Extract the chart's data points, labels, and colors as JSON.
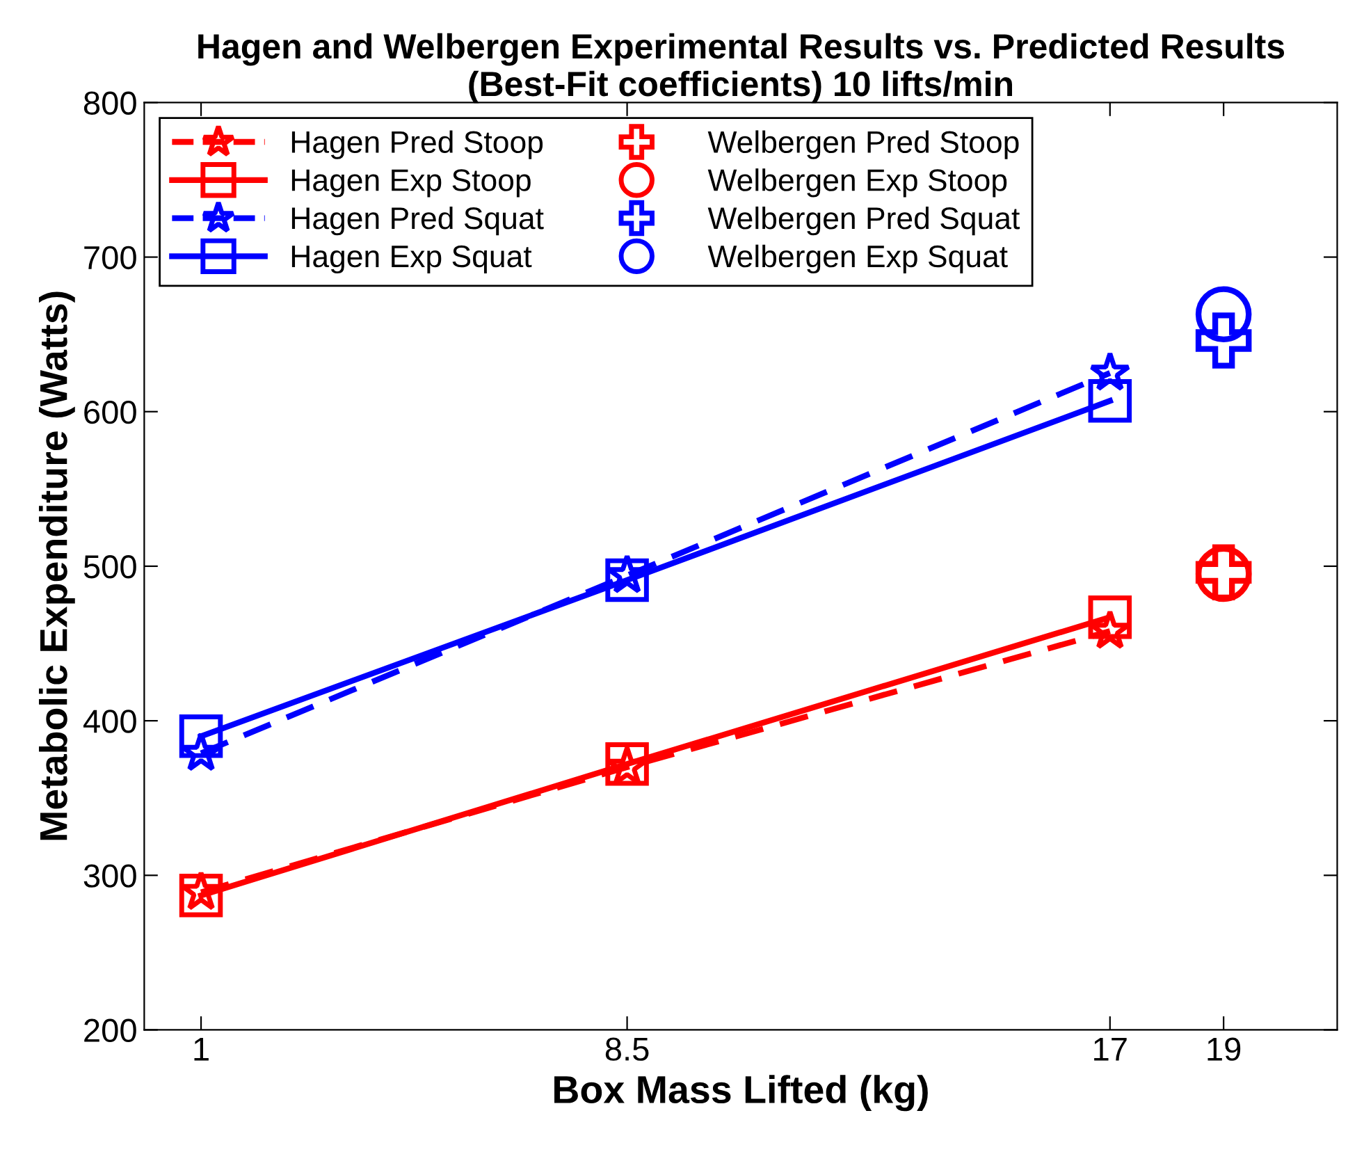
{
  "chart_data": {
    "type": "line",
    "title": "Hagen and Welbergen Experimental Results vs. Predicted Results (Best-Fit coefficients) 10 lifts/min",
    "xlabel": "Box Mass Lifted (kg)",
    "ylabel": "Metabolic Expenditure (Watts)",
    "xlim": [
      0,
      21
    ],
    "xticks": [
      1,
      8.5,
      17,
      19
    ],
    "ylim": [
      200,
      800
    ],
    "yticks": [
      200,
      300,
      400,
      500,
      600,
      700,
      800
    ],
    "grid": false,
    "legend": "top left",
    "series": [
      {
        "name": "Hagen Pred Stoop",
        "color": "#ff0000",
        "x": [
          1,
          8.5,
          17
        ],
        "values": [
          289,
          370,
          458
        ],
        "marker": "star",
        "line_style": "dashed"
      },
      {
        "name": "Hagen Exp Stoop",
        "color": "#ff0000",
        "x": [
          1,
          8.5,
          17
        ],
        "values": [
          287,
          372,
          467
        ],
        "marker": "square",
        "line_style": "solid"
      },
      {
        "name": "Hagen Pred Squat",
        "color": "#0000ff",
        "x": [
          1,
          8.5,
          17
        ],
        "values": [
          379,
          494,
          625
        ],
        "marker": "star",
        "line_style": "dashed"
      },
      {
        "name": "Hagen Exp Squat",
        "color": "#0000ff",
        "x": [
          1,
          8.5,
          17
        ],
        "values": [
          390,
          491,
          607
        ],
        "marker": "square",
        "line_style": "solid"
      },
      {
        "name": "Welbergen Pred Stoop",
        "type": "scatter",
        "color": "#ff0000",
        "x": [
          19
        ],
        "values": [
          496
        ],
        "marker": "cross"
      },
      {
        "name": "Welbergen Exp Stoop",
        "type": "scatter",
        "color": "#ff0000",
        "x": [
          19
        ],
        "values": [
          495
        ],
        "marker": "circle"
      },
      {
        "name": "Welbergen Pred Squat",
        "type": "scatter",
        "color": "#0000ff",
        "x": [
          19
        ],
        "values": [
          646
        ],
        "marker": "cross"
      },
      {
        "name": "Welbergen Exp Squat",
        "type": "scatter",
        "color": "#0000ff",
        "x": [
          19
        ],
        "values": [
          663
        ],
        "marker": "circle"
      }
    ]
  }
}
